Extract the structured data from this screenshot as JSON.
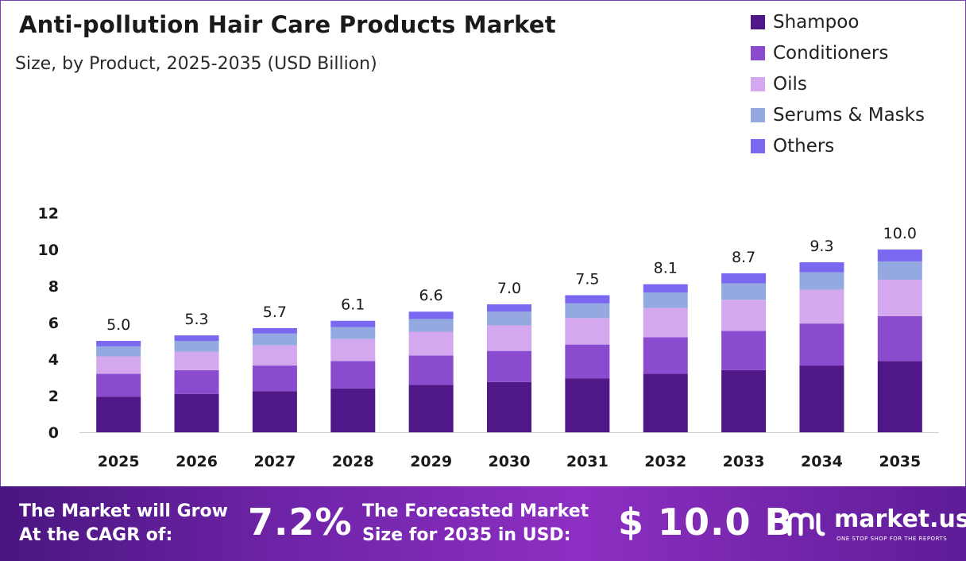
{
  "header": {
    "title": "Anti-pollution Hair Care Products Market",
    "subtitle": "Size, by Product, 2025-2035 (USD Billion)"
  },
  "legend": [
    {
      "label": "Shampoo",
      "color": "#4f1787"
    },
    {
      "label": "Conditioners",
      "color": "#8b4bcf"
    },
    {
      "label": "Oils",
      "color": "#d3a8ee"
    },
    {
      "label": "Serums & Masks",
      "color": "#93a9df"
    },
    {
      "label": "Others",
      "color": "#7a68f0"
    }
  ],
  "chart_data": {
    "type": "bar",
    "stacked": true,
    "title": "Anti-pollution Hair Care Products Market",
    "subtitle": "Size, by Product, 2025-2035 (USD Billion)",
    "categories": [
      "2025",
      "2026",
      "2027",
      "2028",
      "2029",
      "2030",
      "2031",
      "2032",
      "2033",
      "2034",
      "2035"
    ],
    "series": [
      {
        "name": "Shampoo",
        "color": "#4f1787",
        "values": [
          1.95,
          2.1,
          2.25,
          2.4,
          2.6,
          2.75,
          2.95,
          3.2,
          3.4,
          3.65,
          3.9
        ]
      },
      {
        "name": "Conditioners",
        "color": "#8b4bcf",
        "values": [
          1.25,
          1.3,
          1.4,
          1.5,
          1.6,
          1.7,
          1.85,
          2.0,
          2.15,
          2.3,
          2.45
        ]
      },
      {
        "name": "Oils",
        "color": "#d3a8ee",
        "values": [
          0.95,
          1.0,
          1.1,
          1.2,
          1.3,
          1.4,
          1.45,
          1.6,
          1.7,
          1.85,
          2.0
        ]
      },
      {
        "name": "Serums & Masks",
        "color": "#93a9df",
        "values": [
          0.55,
          0.6,
          0.65,
          0.65,
          0.7,
          0.75,
          0.8,
          0.85,
          0.9,
          0.95,
          1.0
        ]
      },
      {
        "name": "Others",
        "color": "#7a68f0",
        "values": [
          0.3,
          0.3,
          0.3,
          0.35,
          0.4,
          0.4,
          0.45,
          0.45,
          0.55,
          0.55,
          0.65
        ]
      }
    ],
    "totals": [
      "5.0",
      "5.3",
      "5.7",
      "6.1",
      "6.6",
      "7.0",
      "7.5",
      "8.1",
      "8.7",
      "9.3",
      "10.0"
    ],
    "yticks": [
      "0",
      "2",
      "4",
      "6",
      "8",
      "10",
      "12"
    ],
    "ylim": [
      0,
      12
    ],
    "xlabel": "",
    "ylabel": "",
    "grid": false,
    "legend_position": "top-right"
  },
  "footer": {
    "cagr_text_line1": "The Market will Grow",
    "cagr_text_line2": "At the CAGR of:",
    "cagr_value": "7.2%",
    "forecast_text_line1": "The Forecasted Market",
    "forecast_text_line2": "Size for 2035 in USD:",
    "forecast_value": "$ 10.0 B",
    "brand_name": "market.us",
    "brand_tagline": "ONE STOP SHOP FOR THE REPORTS"
  }
}
